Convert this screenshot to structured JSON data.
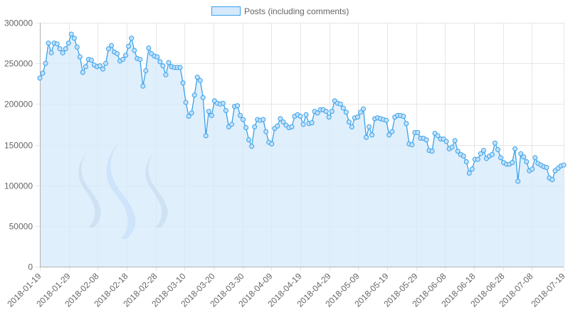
{
  "chart_data": {
    "type": "area",
    "title": "",
    "xlabel": "",
    "ylabel": "",
    "ylim": [
      0,
      300000
    ],
    "yticks": [
      0,
      50000,
      100000,
      150000,
      200000,
      250000,
      300000
    ],
    "yticks_labels": [
      "0",
      "50000",
      "100000",
      "150000",
      "200000",
      "250000",
      "300000"
    ],
    "x_start": "2018-01-19",
    "x_end": "2018-07-19",
    "x_ticks": [
      "2018-01-19",
      "2018-01-29",
      "2018-02-08",
      "2018-02-18",
      "2018-02-28",
      "2018-03-10",
      "2018-03-20",
      "2018-03-30",
      "2018-04-09",
      "2018-04-19",
      "2018-04-29",
      "2018-05-09",
      "2018-05-19",
      "2018-05-29",
      "2018-06-08",
      "2018-06-18",
      "2018-06-28",
      "2018-07-08",
      "2018-07-19"
    ],
    "grid": true,
    "legend_position": "top-center",
    "colors": {
      "line": "#36a2eb",
      "fill": "#d6e9fb",
      "point_fill": "#c5e0f8",
      "grid": "#e6e6e6",
      "axis": "#b3b3b3",
      "logo": "#a8c2e8"
    },
    "series": [
      {
        "name": "Posts (including comments)",
        "values": [
          232000,
          238000,
          250000,
          275000,
          263000,
          275000,
          274000,
          268000,
          263000,
          268000,
          275000,
          286000,
          281000,
          270000,
          258000,
          239000,
          246000,
          255000,
          254000,
          248000,
          246000,
          247000,
          243000,
          250000,
          268000,
          272000,
          264000,
          262000,
          253000,
          255000,
          260000,
          271000,
          281000,
          266000,
          256000,
          255000,
          222000,
          241000,
          269000,
          262000,
          259000,
          258000,
          252000,
          247000,
          236000,
          251000,
          246000,
          245000,
          245000,
          245000,
          226000,
          202000,
          185000,
          189000,
          211000,
          233000,
          229000,
          208000,
          161000,
          191000,
          186000,
          204000,
          201000,
          200000,
          201000,
          192000,
          172000,
          175000,
          197000,
          198000,
          186000,
          181000,
          171000,
          156000,
          148000,
          172000,
          181000,
          180000,
          181000,
          166000,
          153000,
          151000,
          170000,
          173000,
          182000,
          178000,
          174000,
          171000,
          172000,
          185000,
          187000,
          185000,
          175000,
          187000,
          176000,
          177000,
          191000,
          189000,
          193000,
          193000,
          191000,
          184000,
          191000,
          204000,
          201000,
          200000,
          195000,
          190000,
          178000,
          172000,
          183000,
          184000,
          190000,
          194000,
          159000,
          172000,
          162000,
          182000,
          183000,
          182000,
          181000,
          180000,
          162000,
          166000,
          184000,
          186000,
          186000,
          185000,
          176000,
          151000,
          150000,
          165000,
          165000,
          158000,
          158000,
          156000,
          143000,
          142000,
          164000,
          161000,
          157000,
          157000,
          154000,
          145000,
          147000,
          155000,
          142000,
          138000,
          136000,
          129000,
          115000,
          120000,
          132000,
          132000,
          139000,
          143000,
          133000,
          136000,
          138000,
          152000,
          144000,
          134000,
          128000,
          126000,
          126000,
          128000,
          145000,
          105000,
          139000,
          135000,
          129000,
          118000,
          120000,
          134000,
          127000,
          125000,
          123000,
          122000,
          109000,
          107000,
          118000,
          121000,
          124000,
          125000
        ]
      }
    ]
  }
}
